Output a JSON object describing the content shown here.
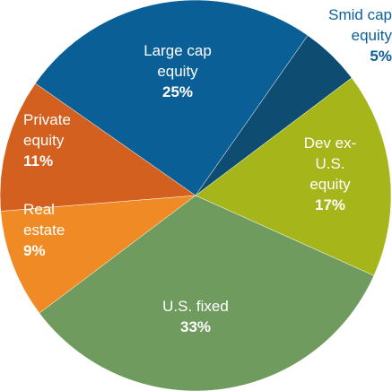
{
  "chart_data": {
    "type": "pie",
    "categories": [
      "Smid cap equity",
      "Dev ex-U.S. equity",
      "U.S. fixed",
      "Real estate",
      "Private equity",
      "Large cap equity"
    ],
    "values": [
      5,
      17,
      33,
      9,
      11,
      25
    ],
    "value_labels": [
      "5%",
      "17%",
      "33%",
      "9%",
      "11%",
      "25%"
    ],
    "colors": [
      "#0e4c72",
      "#a5b51a",
      "#6f9b5e",
      "#f08a24",
      "#d4601f",
      "#0b5f97"
    ]
  }
}
